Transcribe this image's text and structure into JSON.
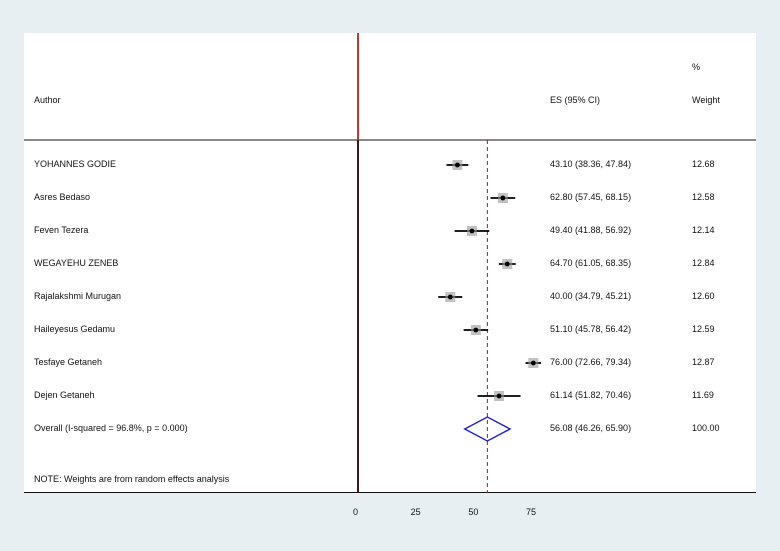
{
  "chart_data": {
    "type": "forest",
    "headers": {
      "author": "Author",
      "es": "ES (95% CI)",
      "weight_pct": "%",
      "weight": "Weight"
    },
    "studies": [
      {
        "author": "YOHANNES GODIE",
        "es": 43.1,
        "lo": 38.36,
        "hi": 47.84,
        "es_text": "43.10 (38.36, 47.84)",
        "weight": "12.68"
      },
      {
        "author": "Asres Bedaso",
        "es": 62.8,
        "lo": 57.45,
        "hi": 68.15,
        "es_text": "62.80 (57.45, 68.15)",
        "weight": "12.58"
      },
      {
        "author": "Feven Tezera",
        "es": 49.4,
        "lo": 41.88,
        "hi": 56.92,
        "es_text": "49.40 (41.88, 56.92)",
        "weight": "12.14"
      },
      {
        "author": "WEGAYEHU ZENEB",
        "es": 64.7,
        "lo": 61.05,
        "hi": 68.35,
        "es_text": "64.70 (61.05, 68.35)",
        "weight": "12.84"
      },
      {
        "author": "Rajalakshmi Murugan",
        "es": 40.0,
        "lo": 34.79,
        "hi": 45.21,
        "es_text": "40.00 (34.79, 45.21)",
        "weight": "12.60"
      },
      {
        "author": "Haileyesus Gedamu",
        "es": 51.1,
        "lo": 45.78,
        "hi": 56.42,
        "es_text": "51.10 (45.78, 56.42)",
        "weight": "12.59"
      },
      {
        "author": "Tesfaye Getaneh",
        "es": 76.0,
        "lo": 72.66,
        "hi": 79.34,
        "es_text": "76.00 (72.66, 79.34)",
        "weight": "12.87"
      },
      {
        "author": "Dejen Getaneh",
        "es": 61.14,
        "lo": 51.82,
        "hi": 70.46,
        "es_text": "61.14 (51.82, 70.46)",
        "weight": "11.69"
      }
    ],
    "overall": {
      "label": "Overall  (I-squared = 96.8%, p = 0.000)",
      "es": 56.08,
      "lo": 46.26,
      "hi": 65.9,
      "es_text": "56.08 (46.26, 65.90)",
      "weight": "100.00"
    },
    "note": "NOTE: Weights are from random effects analysis",
    "x_ticks": [
      0,
      25,
      50,
      75
    ],
    "xlim": [
      0,
      75
    ],
    "null_line": 0,
    "colors": {
      "null_line": "#c0392b",
      "overall_line": "#a01c1c",
      "diamond": "#1f1fd0",
      "ci": "#000000",
      "point": "#000000",
      "weight_box": "#9a9a9a"
    }
  }
}
